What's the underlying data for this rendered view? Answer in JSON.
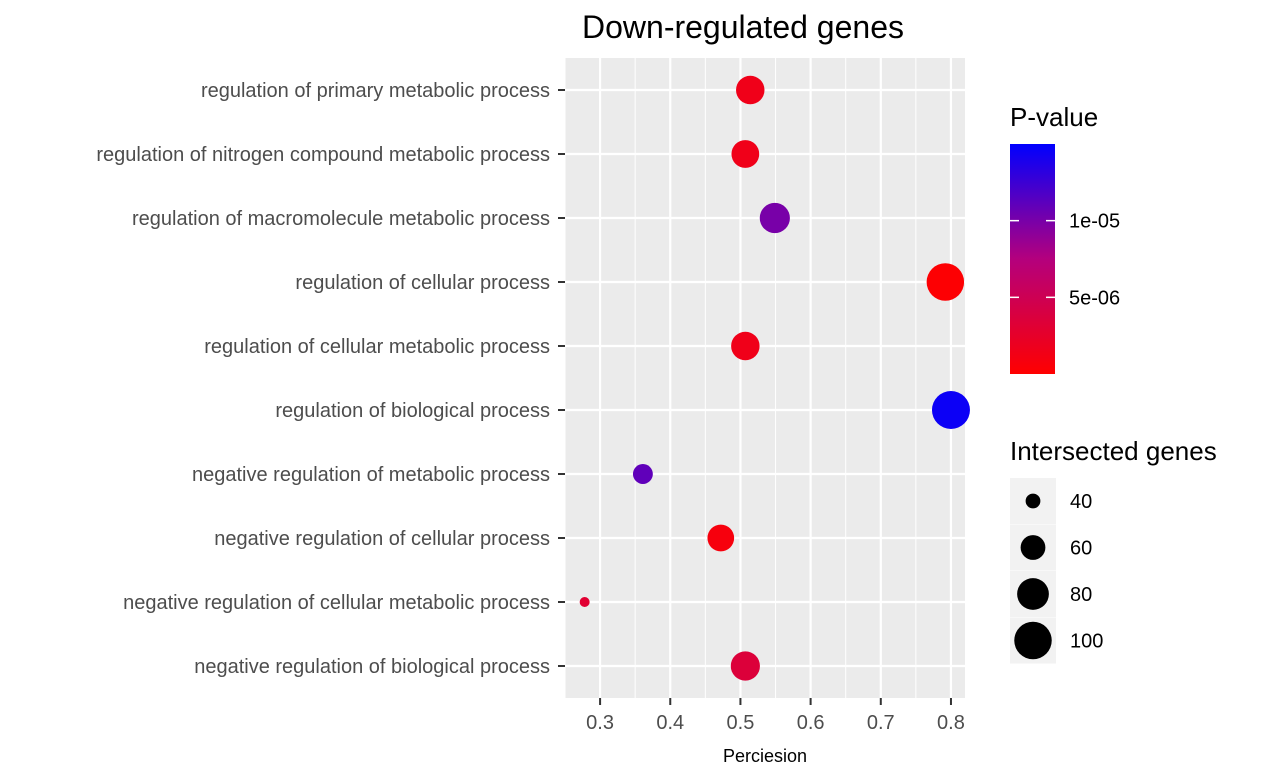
{
  "chart_data": {
    "type": "scatter",
    "title": "Down-regulated genes",
    "xlabel": "Perciesion",
    "ylabel": "",
    "xlim": [
      0.25,
      0.82
    ],
    "xticks": [
      "0.3",
      "0.4",
      "0.5",
      "0.6",
      "0.7",
      "0.8"
    ],
    "xtick_values": [
      0.3,
      0.4,
      0.5,
      0.6,
      0.7,
      0.8
    ],
    "grid": true,
    "categories": [
      "regulation of primary metabolic process",
      "regulation of nitrogen compound metabolic process",
      "regulation of macromolecule metabolic process",
      "regulation of cellular process",
      "regulation of cellular metabolic process",
      "regulation of biological process",
      "negative regulation of metabolic process",
      "negative regulation of cellular process",
      "negative regulation of cellular metabolic process",
      "negative regulation of biological process"
    ],
    "points": [
      {
        "category": "regulation of primary metabolic process",
        "x": 0.514,
        "p_value": 1.5e-06,
        "genes": 70
      },
      {
        "category": "regulation of nitrogen compound metabolic process",
        "x": 0.507,
        "p_value": 1.5e-06,
        "genes": 68
      },
      {
        "category": "regulation of macromolecule metabolic process",
        "x": 0.549,
        "p_value": 1e-05,
        "genes": 75
      },
      {
        "category": "regulation of cellular process",
        "x": 0.792,
        "p_value": 2e-07,
        "genes": 100
      },
      {
        "category": "regulation of cellular metabolic process",
        "x": 0.507,
        "p_value": 1.5e-06,
        "genes": 70
      },
      {
        "category": "regulation of biological process",
        "x": 0.8,
        "p_value": 1.45e-05,
        "genes": 102
      },
      {
        "category": "negative regulation of metabolic process",
        "x": 0.361,
        "p_value": 1.1e-05,
        "genes": 49
      },
      {
        "category": "negative regulation of cellular process",
        "x": 0.472,
        "p_value": 8e-07,
        "genes": 65
      },
      {
        "category": "negative regulation of cellular metabolic process",
        "x": 0.278,
        "p_value": 3e-06,
        "genes": 34
      },
      {
        "category": "negative regulation of biological process",
        "x": 0.507,
        "p_value": 3.5e-06,
        "genes": 72
      }
    ],
    "color_legend": {
      "title": "P-value",
      "range": [
        0,
        1.5e-05
      ],
      "low_color": "#ff0000",
      "high_color": "#0000ff",
      "breaks": [
        1e-05,
        5e-06
      ],
      "break_labels": [
        "1e-05",
        "5e-06"
      ]
    },
    "size_legend": {
      "title": "Intersected genes",
      "range": [
        34,
        102
      ],
      "breaks": [
        40,
        60,
        80,
        100
      ],
      "break_labels": [
        "40",
        "60",
        "80",
        "100"
      ]
    },
    "panel_background": "#ebebeb",
    "legend_position": "right"
  }
}
